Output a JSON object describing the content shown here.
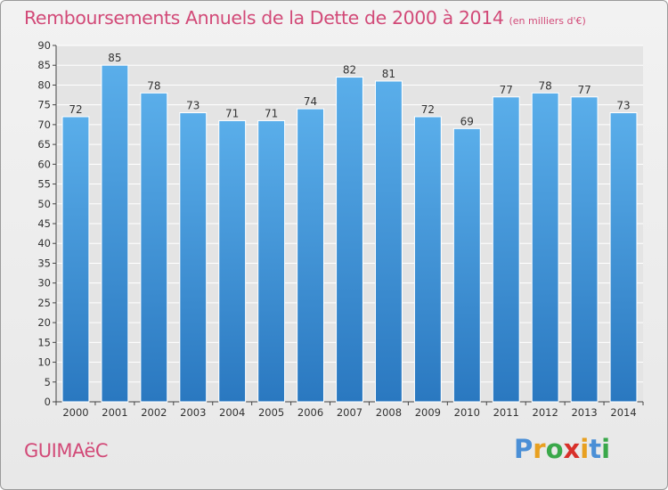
{
  "header": {
    "title": "Remboursements Annuels de la Dette de 2000 à 2014",
    "unit": "(en milliers d'€)"
  },
  "footer": {
    "commune": "GUIMAëC",
    "brand_letters": [
      "P",
      "r",
      "o",
      "x",
      "i",
      "t",
      "i"
    ],
    "brand_colors": [
      "#4a8fd6",
      "#e8a020",
      "#3aa84a",
      "#d8302a",
      "#e8a020",
      "#4a8fd6",
      "#3aa84a"
    ]
  },
  "colors": {
    "bar_light": "#5aaeea",
    "bar_dark": "#2a78c0",
    "axis_label": "#d24a78",
    "grid": "#ffffff"
  },
  "chart_data": {
    "type": "bar",
    "categories": [
      "2000",
      "2001",
      "2002",
      "2003",
      "2004",
      "2005",
      "2006",
      "2007",
      "2008",
      "2009",
      "2010",
      "2011",
      "2012",
      "2013",
      "2014"
    ],
    "values": [
      72,
      85,
      78,
      73,
      71,
      71,
      74,
      82,
      81,
      72,
      69,
      77,
      78,
      77,
      73
    ],
    "title": "Remboursements Annuels de la Dette de 2000 à 2014",
    "subtitle": "(en milliers d'€)",
    "ylim": [
      0,
      90
    ],
    "yticks": [
      0,
      5,
      10,
      15,
      20,
      25,
      30,
      35,
      40,
      45,
      50,
      55,
      60,
      65,
      70,
      75,
      80,
      85,
      90
    ],
    "grid": true,
    "legend": "none"
  }
}
